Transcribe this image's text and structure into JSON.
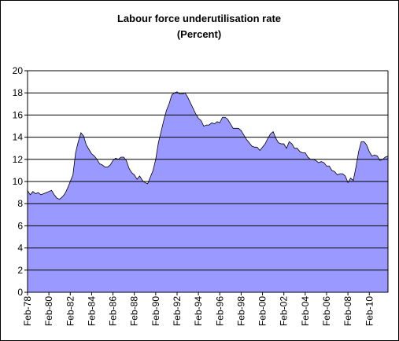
{
  "chart_data": {
    "type": "area",
    "title": "Labour force underutilisation rate",
    "subtitle": "(Percent)",
    "color": "#9999ff",
    "grid": true,
    "ylim": [
      0,
      20
    ],
    "yticks": [
      0,
      2,
      4,
      6,
      8,
      10,
      12,
      14,
      16,
      18,
      20
    ],
    "categories": [
      "Feb-78",
      null,
      null,
      null,
      null,
      null,
      null,
      null,
      "Feb-80",
      null,
      null,
      null,
      null,
      null,
      null,
      null,
      "Feb-82",
      null,
      null,
      null,
      null,
      null,
      null,
      null,
      "Feb-84",
      null,
      null,
      null,
      null,
      null,
      null,
      null,
      "Feb-86",
      null,
      null,
      null,
      null,
      null,
      null,
      null,
      "Feb-88",
      null,
      null,
      null,
      null,
      null,
      null,
      null,
      "Feb-90",
      null,
      null,
      null,
      null,
      null,
      null,
      null,
      "Feb-92",
      null,
      null,
      null,
      null,
      null,
      null,
      null,
      "Feb-94",
      null,
      null,
      null,
      null,
      null,
      null,
      null,
      "Feb-96",
      null,
      null,
      null,
      null,
      null,
      null,
      null,
      "Feb-98",
      null,
      null,
      null,
      null,
      null,
      null,
      null,
      "Feb-00",
      null,
      null,
      null,
      null,
      null,
      null,
      null,
      "Feb-02",
      null,
      null,
      null,
      null,
      null,
      null,
      null,
      "Feb-04",
      null,
      null,
      null,
      null,
      null,
      null,
      null,
      "Feb-06",
      null,
      null,
      null,
      null,
      null,
      null,
      null,
      "Feb-08",
      null,
      null,
      null,
      null,
      null,
      null,
      null,
      "Feb-10",
      null,
      null,
      null,
      null,
      null,
      null,
      null
    ],
    "values": [
      9.2,
      8.8,
      9.1,
      8.9,
      9.0,
      8.8,
      8.9,
      9.0,
      9.1,
      9.2,
      8.8,
      8.5,
      8.4,
      8.6,
      8.9,
      9.4,
      10.0,
      10.6,
      12.6,
      13.6,
      14.4,
      14.1,
      13.3,
      12.9,
      12.5,
      12.3,
      12.0,
      11.6,
      11.5,
      11.3,
      11.3,
      11.5,
      11.9,
      12.1,
      12.0,
      12.2,
      12.2,
      11.9,
      11.2,
      10.8,
      10.6,
      10.2,
      10.5,
      10.1,
      9.9,
      9.8,
      10.4,
      11.0,
      12.0,
      13.5,
      14.5,
      15.5,
      16.4,
      17.0,
      17.8,
      18.0,
      18.1,
      17.9,
      17.9,
      18.0,
      17.6,
      17.1,
      16.6,
      16.1,
      15.7,
      15.5,
      15.0,
      15.1,
      15.1,
      15.3,
      15.2,
      15.4,
      15.3,
      15.8,
      15.8,
      15.6,
      15.2,
      14.8,
      14.8,
      14.8,
      14.6,
      14.2,
      13.8,
      13.5,
      13.2,
      13.1,
      13.1,
      12.8,
      13.1,
      13.4,
      13.9,
      14.3,
      14.5,
      13.9,
      13.5,
      13.4,
      13.4,
      13.0,
      13.6,
      13.4,
      13.0,
      13.0,
      12.7,
      12.6,
      12.6,
      12.2,
      12.0,
      12.0,
      11.9,
      11.7,
      11.8,
      11.7,
      11.4,
      11.4,
      11.0,
      10.9,
      10.6,
      10.7,
      10.7,
      10.5,
      9.9,
      10.3,
      10.1,
      11.3,
      12.7,
      13.6,
      13.6,
      13.3,
      12.7,
      12.3,
      12.4,
      12.3,
      11.9,
      12.0,
      12.2,
      12.3
    ]
  }
}
